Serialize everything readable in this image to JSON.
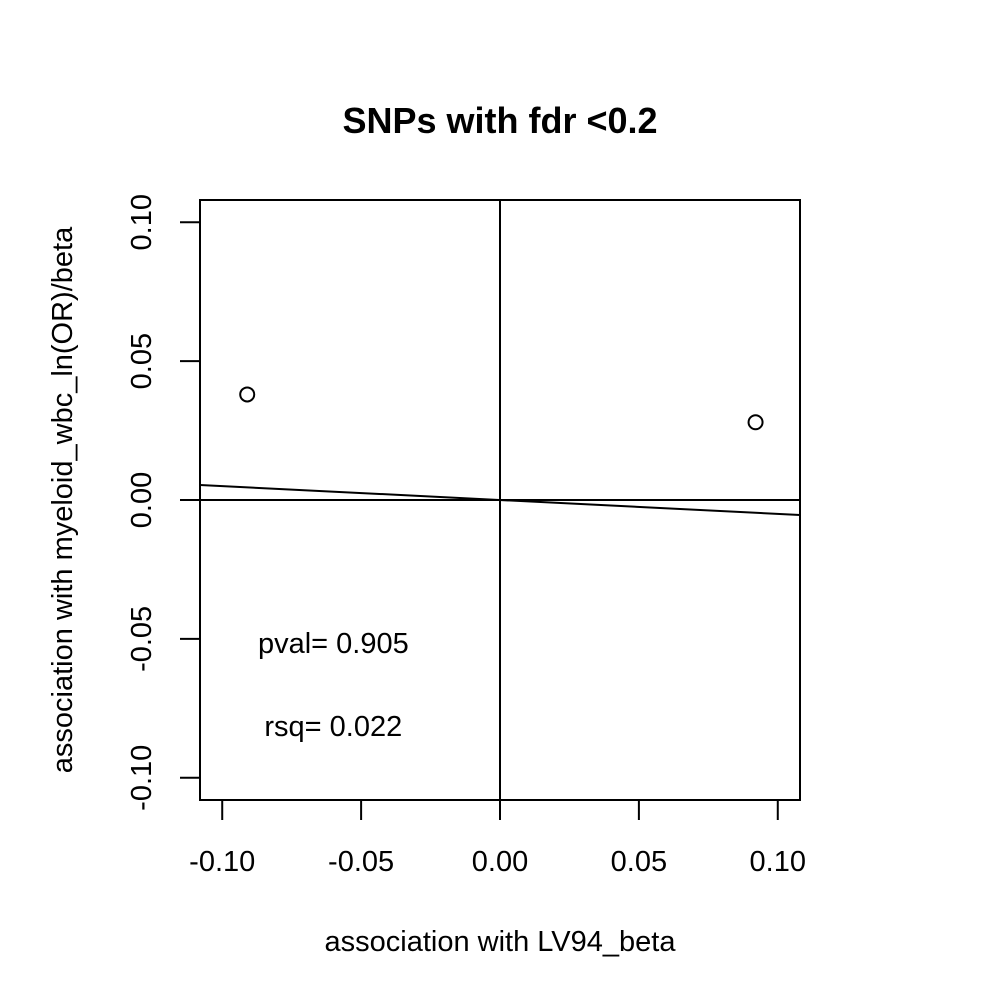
{
  "chart_data": {
    "type": "scatter",
    "title": "SNPs with fdr <0.2",
    "xlabel": "association with LV94_beta",
    "ylabel": "association with myeloid_wbc_ln(OR)/beta",
    "xlim": [
      -0.108,
      0.108
    ],
    "ylim": [
      -0.108,
      0.108
    ],
    "xticks": [
      -0.1,
      -0.05,
      0.0,
      0.05,
      0.1
    ],
    "yticks": [
      -0.1,
      -0.05,
      0.0,
      0.05,
      0.1
    ],
    "xtick_labels": [
      "-0.10",
      "-0.05",
      "0.00",
      "0.05",
      "0.10"
    ],
    "ytick_labels": [
      "-0.10",
      "-0.05",
      "0.00",
      "0.05",
      "0.10"
    ],
    "points": [
      {
        "x": -0.091,
        "y": 0.038
      },
      {
        "x": 0.092,
        "y": 0.028
      }
    ],
    "reference_lines": {
      "h": 0,
      "v": 0
    },
    "fit_line": {
      "intercept": 0.0,
      "slope": -0.05
    },
    "annotations": [
      {
        "text": "pval= 0.905",
        "x": -0.06,
        "y": -0.055
      },
      {
        "text": "rsq= 0.022",
        "x": -0.06,
        "y": -0.085
      }
    ],
    "grid": false,
    "marker": "open-circle",
    "colors": {
      "ink": "#000000",
      "background": "#ffffff"
    }
  }
}
